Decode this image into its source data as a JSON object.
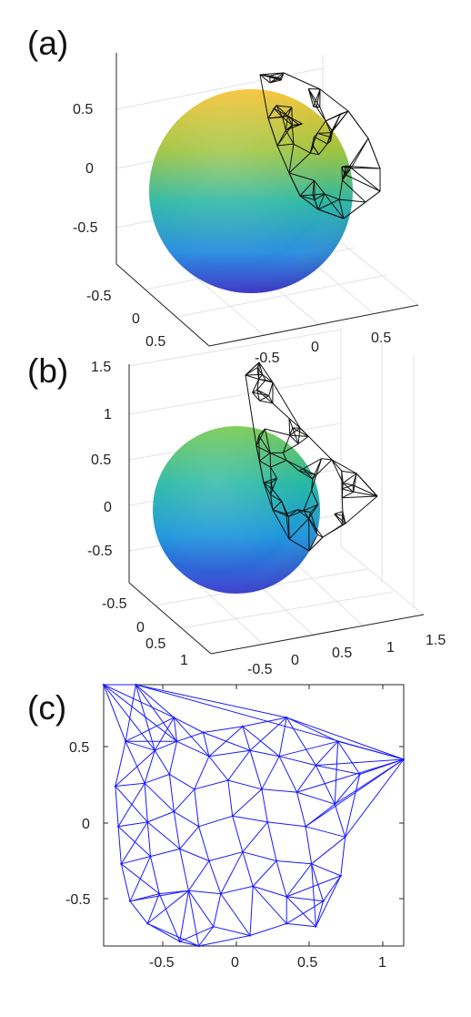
{
  "figure": {
    "panels": [
      {
        "label": "(a)"
      },
      {
        "label": "(b)"
      },
      {
        "label": "(c)"
      }
    ]
  },
  "colors": {
    "sphere_top": "#f5b93a",
    "sphere_mid": "#2cb8a4",
    "sphere_bottom": "#3b3bd6",
    "wireframe_3d": "#111111",
    "mesh_2d": "#1a1aff",
    "grid": "#e2e2e2",
    "axis": "#262626"
  },
  "chart_data": [
    {
      "type": "3d-surface",
      "panel": "(a)",
      "title": "",
      "surface": "unit sphere, parula colormap by height",
      "z_ticks": [
        "0.5",
        "0",
        "-0.5"
      ],
      "x_ticks": [
        "-0.5",
        "0",
        "0.5"
      ],
      "y_ticks": [
        "-0.5",
        "0",
        "0.5"
      ],
      "overlay": "black triangulated wireframe cap on sphere",
      "grid": true
    },
    {
      "type": "3d-surface",
      "panel": "(b)",
      "title": "",
      "surface": "unit sphere, parula colormap by height",
      "z_ticks": [
        "1.5",
        "1",
        "0.5",
        "0",
        "-0.5"
      ],
      "x_ticks": [
        "-0.5",
        "0",
        "0.5",
        "1"
      ],
      "y_ticks": [
        "-0.5",
        "0",
        "0.5",
        "1"
      ],
      "extra_x_tick": "1.5",
      "overlay": "black triangulated wireframe, stretched mesh",
      "grid": true
    },
    {
      "type": "mesh-2d",
      "panel": "(c)",
      "title": "",
      "xlim": [
        -0.9,
        1.15
      ],
      "ylim": [
        -0.85,
        0.9
      ],
      "x_ticks": [
        "-0.5",
        "0",
        "0.5",
        "1"
      ],
      "y_ticks": [
        "0.5",
        "0",
        "-0.5"
      ],
      "nodes": [
        [
          -0.9,
          0.9
        ],
        [
          -0.68,
          0.9
        ],
        [
          -0.42,
          0.68
        ],
        [
          -0.22,
          0.58
        ],
        [
          0.05,
          0.62
        ],
        [
          0.35,
          0.68
        ],
        [
          0.7,
          0.52
        ],
        [
          1.15,
          0.4
        ],
        [
          -0.75,
          0.52
        ],
        [
          -0.55,
          0.46
        ],
        [
          -0.4,
          0.52
        ],
        [
          -0.18,
          0.42
        ],
        [
          0.1,
          0.46
        ],
        [
          0.3,
          0.42
        ],
        [
          0.55,
          0.36
        ],
        [
          0.85,
          0.3
        ],
        [
          -0.82,
          0.22
        ],
        [
          -0.62,
          0.24
        ],
        [
          -0.45,
          0.3
        ],
        [
          -0.28,
          0.2
        ],
        [
          -0.05,
          0.26
        ],
        [
          0.18,
          0.2
        ],
        [
          0.42,
          0.18
        ],
        [
          0.68,
          0.1
        ],
        [
          -0.8,
          -0.05
        ],
        [
          -0.6,
          -0.02
        ],
        [
          -0.42,
          0.05
        ],
        [
          -0.25,
          -0.05
        ],
        [
          -0.02,
          0.02
        ],
        [
          0.22,
          -0.02
        ],
        [
          0.48,
          -0.05
        ],
        [
          0.75,
          -0.12
        ],
        [
          -0.78,
          -0.3
        ],
        [
          -0.58,
          -0.25
        ],
        [
          -0.38,
          -0.2
        ],
        [
          -0.18,
          -0.28
        ],
        [
          0.05,
          -0.22
        ],
        [
          0.28,
          -0.28
        ],
        [
          0.52,
          -0.3
        ],
        [
          0.72,
          -0.38
        ],
        [
          -0.72,
          -0.55
        ],
        [
          -0.52,
          -0.5
        ],
        [
          -0.32,
          -0.48
        ],
        [
          -0.1,
          -0.5
        ],
        [
          0.12,
          -0.45
        ],
        [
          0.35,
          -0.52
        ],
        [
          0.6,
          -0.55
        ],
        [
          -0.6,
          -0.7
        ],
        [
          -0.38,
          -0.82
        ],
        [
          -0.15,
          -0.72
        ],
        [
          0.1,
          -0.78
        ],
        [
          0.35,
          -0.7
        ],
        [
          0.55,
          -0.72
        ],
        [
          -0.25,
          -0.85
        ]
      ],
      "grid": false
    }
  ]
}
